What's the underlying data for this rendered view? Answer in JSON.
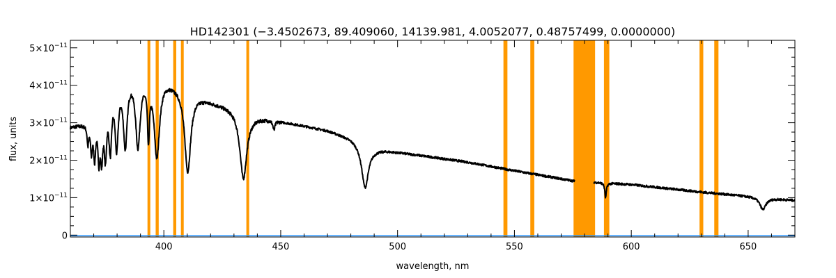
{
  "chart_data": {
    "type": "line",
    "title": "HD142301    (−3.4502673, 89.409060, 14139.981, 4.0052077, 0.48757499, 0.0000000)",
    "xlabel": "wavelength, nm",
    "ylabel": "flux, units",
    "xlim": [
      360,
      670
    ],
    "ylim": [
      -5e-13,
      5.2e-11
    ],
    "x_ticks": [
      400,
      450,
      500,
      550,
      600,
      650
    ],
    "x_tick_labels": [
      "400",
      "450",
      "500",
      "550",
      "600",
      "650"
    ],
    "y_ticks": [
      0,
      1e-11,
      2e-11,
      3e-11,
      4e-11,
      5e-11
    ],
    "y_tick_labels": [
      {
        "base": "0",
        "exp": ""
      },
      {
        "base": "1×10",
        "exp": "−11"
      },
      {
        "base": "2×10",
        "exp": "−11"
      },
      {
        "base": "3×10",
        "exp": "−11"
      },
      {
        "base": "4×10",
        "exp": "−11"
      },
      {
        "base": "5×10",
        "exp": "−11"
      }
    ],
    "grid": false,
    "colors": {
      "spectrum": "#000000",
      "error": "#1e90ff",
      "mask": "#ff9900"
    },
    "series": [
      {
        "role": "spectrum",
        "continuum": [
          [
            360,
            2.9e-11
          ],
          [
            370,
            3.05e-11
          ],
          [
            378,
            4.15e-11
          ],
          [
            385,
            4.35e-11
          ],
          [
            395,
            4.3e-11
          ],
          [
            400,
            4.2e-11
          ],
          [
            405,
            4.05e-11
          ],
          [
            410,
            3.95e-11
          ],
          [
            415,
            3.75e-11
          ],
          [
            420,
            3.6e-11
          ],
          [
            430,
            3.4e-11
          ],
          [
            436,
            3.22e-11
          ],
          [
            450,
            3.05e-11
          ],
          [
            470,
            2.8e-11
          ],
          [
            480,
            2.6e-11
          ],
          [
            490,
            2.32e-11
          ],
          [
            500,
            2.22e-11
          ],
          [
            530,
            1.95e-11
          ],
          [
            550,
            1.72e-11
          ],
          [
            575,
            1.45e-11
          ],
          [
            600,
            1.35e-11
          ],
          [
            630,
            1.15e-11
          ],
          [
            650,
            1.04e-11
          ],
          [
            670,
            9.3e-12
          ]
        ],
        "absorption_lines": [
          {
            "center": 367.5,
            "depth": 5e-12,
            "width": 0.4
          },
          {
            "center": 369.0,
            "depth": 7e-12,
            "width": 0.45
          },
          {
            "center": 370.4,
            "depth": 9e-12,
            "width": 0.5
          },
          {
            "center": 372.2,
            "depth": 1.1e-11,
            "width": 0.55
          },
          {
            "center": 373.4,
            "depth": 1.2e-11,
            "width": 0.6
          },
          {
            "center": 375.0,
            "depth": 1.4e-11,
            "width": 0.65
          },
          {
            "center": 377.1,
            "depth": 1.55e-11,
            "width": 0.75
          },
          {
            "center": 379.8,
            "depth": 1.7e-11,
            "width": 0.85
          },
          {
            "center": 383.5,
            "depth": 1.8e-11,
            "width": 1.0
          },
          {
            "center": 388.9,
            "depth": 1.85e-11,
            "width": 1.2
          },
          {
            "center": 393.4,
            "depth": 1.5e-11,
            "width": 0.5
          },
          {
            "center": 397.0,
            "depth": 2.1e-11,
            "width": 1.4
          },
          {
            "center": 410.2,
            "depth": 2.2e-11,
            "width": 1.6
          },
          {
            "center": 434.0,
            "depth": 1.75e-11,
            "width": 1.8
          },
          {
            "center": 447.1,
            "depth": 2.5e-12,
            "width": 0.5
          },
          {
            "center": 486.1,
            "depth": 1.15e-11,
            "width": 1.8
          },
          {
            "center": 589.0,
            "depth": 4e-12,
            "width": 0.4
          },
          {
            "center": 656.3,
            "depth": 3.2e-12,
            "width": 1.6
          }
        ],
        "gap": [
          576,
          584
        ]
      },
      {
        "role": "error",
        "y_value": 0.0
      }
    ],
    "masked_regions": [
      [
        393.0,
        394.2
      ],
      [
        396.5,
        397.8
      ],
      [
        404.0,
        405.3
      ],
      [
        407.3,
        408.5
      ],
      [
        435.3,
        436.5
      ],
      [
        545.3,
        547.0
      ],
      [
        556.8,
        558.5
      ],
      [
        575.3,
        584.5
      ],
      [
        588.3,
        590.6
      ],
      [
        629.2,
        630.8
      ],
      [
        635.5,
        637.3
      ]
    ]
  }
}
